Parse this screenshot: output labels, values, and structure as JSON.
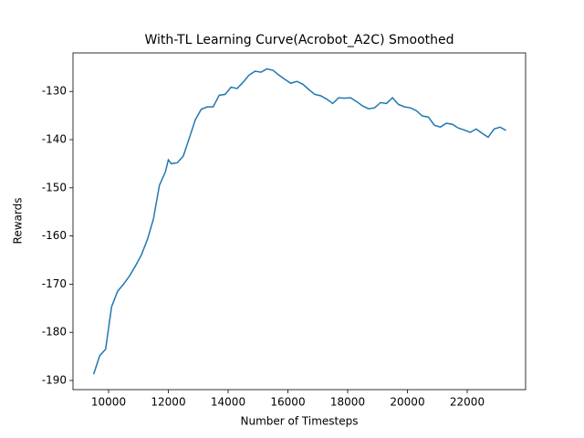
{
  "chart_data": {
    "type": "line",
    "title": "With-TL Learning Curve(Acrobot_A2C) Smoothed",
    "x_label": "Number of Timesteps",
    "y_label": "Rewards",
    "x": [
      9500,
      9700,
      9900,
      10100,
      10300,
      10500,
      10700,
      10900,
      11100,
      11300,
      11500,
      11700,
      11900,
      12000,
      12100,
      12300,
      12500,
      12700,
      12900,
      13100,
      13300,
      13500,
      13700,
      13900,
      14100,
      14300,
      14500,
      14700,
      14900,
      15100,
      15300,
      15500,
      15700,
      15900,
      16100,
      16300,
      16500,
      16700,
      16900,
      17100,
      17300,
      17500,
      17700,
      17900,
      18100,
      18300,
      18500,
      18700,
      18900,
      19100,
      19300,
      19500,
      19700,
      19900,
      20100,
      20300,
      20500,
      20700,
      20900,
      21100,
      21300,
      21500,
      21700,
      21900,
      22100,
      22300,
      22500,
      22700,
      22900,
      23100,
      23300
    ],
    "series": [
      {
        "name": "Rewards",
        "color": "#1f77b4",
        "values": [
          -188.7,
          -184.9,
          -183.5,
          -174.7,
          -171.5,
          -170.0,
          -168.3,
          -166.2,
          -163.9,
          -160.7,
          -156.5,
          -149.5,
          -146.7,
          -144.2,
          -145.0,
          -144.8,
          -143.4,
          -139.7,
          -135.9,
          -133.7,
          -133.2,
          -133.2,
          -130.8,
          -130.6,
          -129.1,
          -129.4,
          -128.1,
          -126.6,
          -125.8,
          -126.0,
          -125.3,
          -125.6,
          -126.6,
          -127.5,
          -128.3,
          -127.9,
          -128.5,
          -129.6,
          -130.6,
          -130.9,
          -131.6,
          -132.5,
          -131.3,
          -131.4,
          -131.3,
          -132.1,
          -133.0,
          -133.6,
          -133.4,
          -132.3,
          -132.5,
          -131.3,
          -132.7,
          -133.2,
          -133.4,
          -134.0,
          -135.1,
          -135.3,
          -137.0,
          -137.4,
          -136.6,
          -136.8,
          -137.6,
          -138.0,
          -138.5,
          -137.8,
          -138.7,
          -139.5,
          -137.8,
          -137.4,
          -138.1
        ]
      }
    ],
    "xlim": [
      8809,
      23954
    ],
    "ylim": [
      -191.9,
      -122.0
    ],
    "xticks": [
      10000,
      12000,
      14000,
      16000,
      18000,
      20000,
      22000
    ],
    "yticks": [
      -190,
      -180,
      -170,
      -160,
      -150,
      -140,
      -130
    ],
    "grid": false
  }
}
